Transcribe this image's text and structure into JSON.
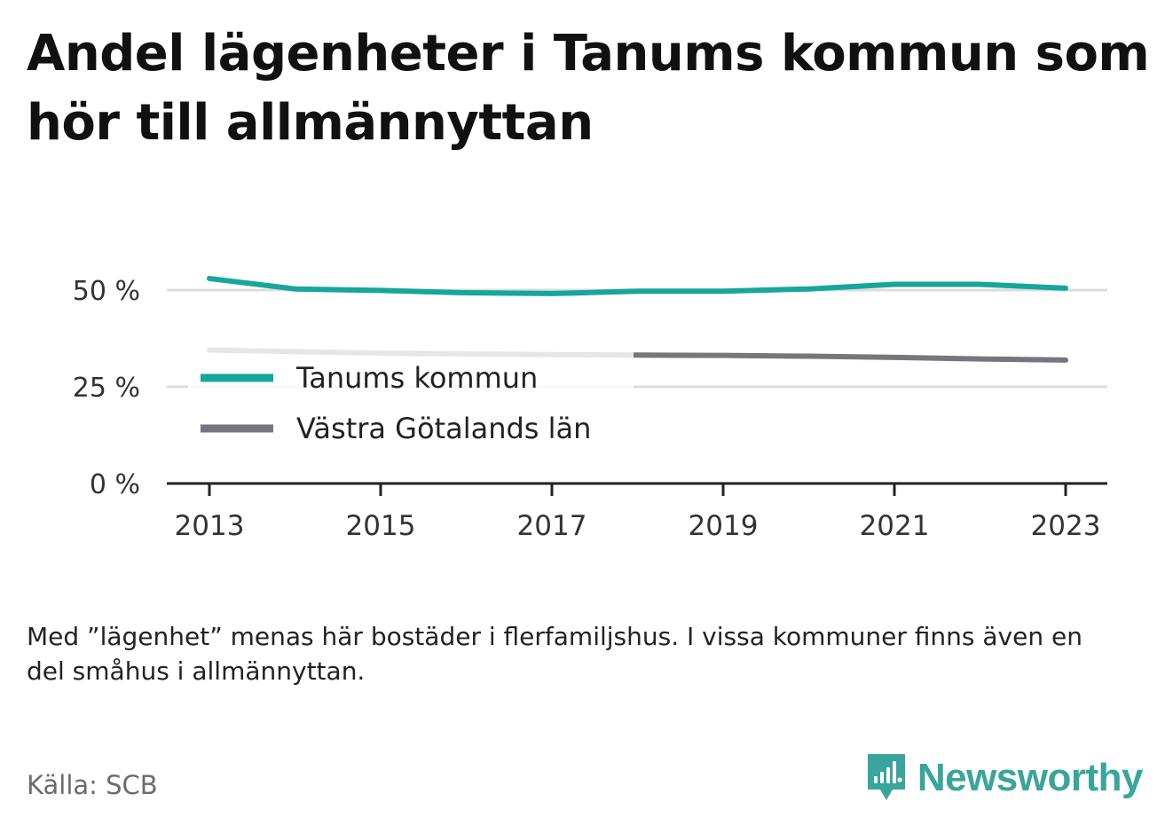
{
  "title": "Andel lägenheter i Tanums kommun som hör till allmännyttan",
  "note": "Med ”lägenhet” menas här bostäder i flerfamiljshus. I vissa kommuner finns även en del småhus i allmännyttan.",
  "source": "Källa: SCB",
  "brand": {
    "name": "Newsworthy",
    "icon": "bar-chart-speech-bubble-icon",
    "color": "#3aa59c"
  },
  "chart_data": {
    "type": "line",
    "title": "Andel lägenheter i Tanums kommun som hör till allmännyttan",
    "xlabel": "",
    "ylabel": "",
    "x": [
      2013,
      2014,
      2015,
      2016,
      2017,
      2018,
      2019,
      2020,
      2021,
      2022,
      2023
    ],
    "xticks": [
      2013,
      2015,
      2017,
      2019,
      2021,
      2023
    ],
    "xtick_labels": [
      "2013",
      "2015",
      "2017",
      "2019",
      "2021",
      "2023"
    ],
    "yticks": [
      0,
      25,
      50
    ],
    "ytick_labels": [
      "0 %",
      "25 %",
      "50 %"
    ],
    "ylim": [
      0,
      52
    ],
    "grid": true,
    "legend_position": "left",
    "series": [
      {
        "name": "Tanums kommun",
        "color": "#16a69c",
        "values": [
          53.0,
          50.3,
          49.9,
          49.3,
          49.1,
          49.7,
          49.7,
          50.3,
          51.5,
          51.5,
          50.5
        ]
      },
      {
        "name": "Västra Götalands län",
        "color": "#76767e",
        "values": [
          34.5,
          34.1,
          33.7,
          33.5,
          33.3,
          33.2,
          33.1,
          32.9,
          32.6,
          32.2,
          31.9
        ]
      }
    ]
  }
}
